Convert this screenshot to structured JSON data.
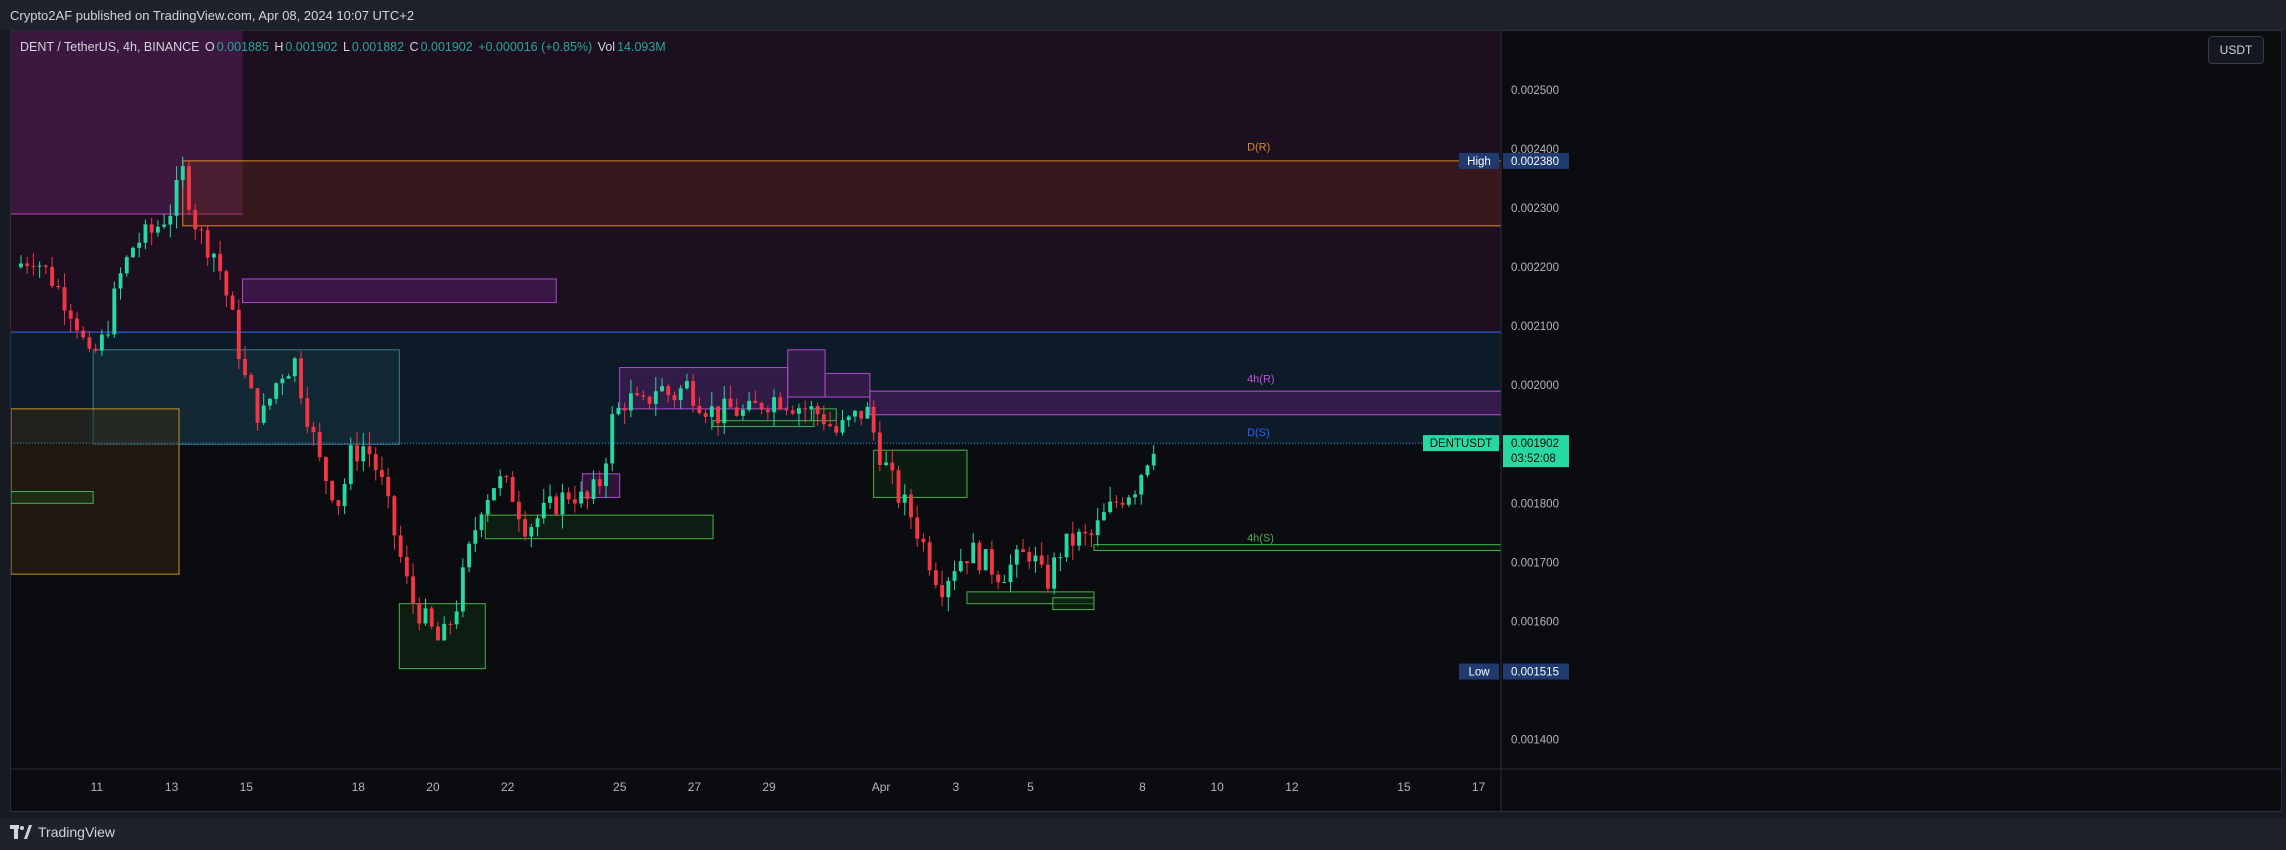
{
  "header": {
    "published": "Crypto2AF published on TradingView.com, Apr 08, 2024 10:07 UTC+2"
  },
  "footer": {
    "brand": "TradingView"
  },
  "legend": {
    "symbol": "DENT / TetherUS, 4h, BINANCE",
    "o_label": "O",
    "o_value": "0.001885",
    "h_label": "H",
    "h_value": "0.001902",
    "l_label": "L",
    "l_value": "0.001882",
    "c_label": "C",
    "c_value": "0.001902",
    "change": "+0.000016 (+0.85%)",
    "vol_label": "Vol",
    "vol_value": "14.093M"
  },
  "currency_button": "USDT",
  "colors": {
    "up": "#26d9a0",
    "down": "#f23645",
    "axis_text": "#b2b5be",
    "label_high_bg": "#1e3a6e",
    "label_price_bg": "#26d9a0"
  },
  "chart_data": {
    "type": "candlestick",
    "title": "DENT / TetherUS, 4h, BINANCE",
    "ylim": [
      0.00135,
      0.0026
    ],
    "y_ticks": [
      "0.002500",
      "0.002400",
      "0.002300",
      "0.002200",
      "0.002100",
      "0.002000",
      "0.001800",
      "0.001700",
      "0.001600",
      "0.001400"
    ],
    "x_ticks": [
      {
        "day": 11,
        "label": "11"
      },
      {
        "day": 13,
        "label": "13"
      },
      {
        "day": 15,
        "label": "15"
      },
      {
        "day": 18,
        "label": "18"
      },
      {
        "day": 20,
        "label": "20"
      },
      {
        "day": 22,
        "label": "22"
      },
      {
        "day": 25,
        "label": "25"
      },
      {
        "day": 27,
        "label": "27"
      },
      {
        "day": 29,
        "label": "29"
      },
      {
        "day": 32,
        "label": "Apr"
      },
      {
        "day": 34,
        "label": "3"
      },
      {
        "day": 36,
        "label": "5"
      },
      {
        "day": 39,
        "label": "8"
      },
      {
        "day": 41,
        "label": "10"
      },
      {
        "day": 43,
        "label": "12"
      },
      {
        "day": 46,
        "label": "15"
      },
      {
        "day": 48,
        "label": "17"
      }
    ],
    "x_range_days": [
      8.7,
      48.6
    ],
    "last_day": 39.3,
    "anchors": [
      [
        8.8,
        0.0022
      ],
      [
        9.3,
        0.00222
      ],
      [
        9.8,
        0.00218
      ],
      [
        10.4,
        0.00212
      ],
      [
        10.8,
        0.00204
      ],
      [
        11.2,
        0.00208
      ],
      [
        11.6,
        0.00218
      ],
      [
        12.0,
        0.00224
      ],
      [
        12.5,
        0.00226
      ],
      [
        13.0,
        0.0023
      ],
      [
        13.3,
        0.00236
      ],
      [
        13.7,
        0.00226
      ],
      [
        14.2,
        0.00222
      ],
      [
        14.6,
        0.00212
      ],
      [
        15.0,
        0.002
      ],
      [
        15.4,
        0.00194
      ],
      [
        15.9,
        0.00202
      ],
      [
        16.3,
        0.00204
      ],
      [
        16.6,
        0.00196
      ],
      [
        17.0,
        0.00186
      ],
      [
        17.5,
        0.0018
      ],
      [
        17.8,
        0.00188
      ],
      [
        18.2,
        0.0019
      ],
      [
        18.6,
        0.00184
      ],
      [
        19.0,
        0.00174
      ],
      [
        19.4,
        0.00164
      ],
      [
        19.8,
        0.0016
      ],
      [
        20.2,
        0.00156
      ],
      [
        20.6,
        0.00162
      ],
      [
        20.9,
        0.0017
      ],
      [
        21.3,
        0.0018
      ],
      [
        21.7,
        0.00184
      ],
      [
        22.1,
        0.00182
      ],
      [
        22.5,
        0.00176
      ],
      [
        22.9,
        0.00178
      ],
      [
        23.3,
        0.0018
      ],
      [
        23.7,
        0.00182
      ],
      [
        24.1,
        0.0018
      ],
      [
        24.5,
        0.00184
      ],
      [
        24.8,
        0.00194
      ],
      [
        25.2,
        0.00198
      ],
      [
        25.6,
        0.00196
      ],
      [
        26.0,
        0.002
      ],
      [
        26.4,
        0.00198
      ],
      [
        26.8,
        0.002
      ],
      [
        27.2,
        0.00197
      ],
      [
        27.6,
        0.00195
      ],
      [
        28.0,
        0.00196
      ],
      [
        28.4,
        0.00195
      ],
      [
        28.8,
        0.00197
      ],
      [
        29.2,
        0.00198
      ],
      [
        29.6,
        0.00197
      ],
      [
        30.0,
        0.00196
      ],
      [
        30.4,
        0.00195
      ],
      [
        30.8,
        0.00192
      ],
      [
        31.2,
        0.00194
      ],
      [
        31.6,
        0.00196
      ],
      [
        32.0,
        0.00188
      ],
      [
        32.4,
        0.00182
      ],
      [
        32.8,
        0.00178
      ],
      [
        33.2,
        0.00172
      ],
      [
        33.6,
        0.00166
      ],
      [
        34.0,
        0.0017
      ],
      [
        34.4,
        0.00172
      ],
      [
        34.8,
        0.0017
      ],
      [
        35.2,
        0.00168
      ],
      [
        35.6,
        0.0017
      ],
      [
        36.0,
        0.00172
      ],
      [
        36.4,
        0.00166
      ],
      [
        36.8,
        0.00172
      ],
      [
        37.2,
        0.00174
      ],
      [
        37.6,
        0.00174
      ],
      [
        38.0,
        0.00178
      ],
      [
        38.4,
        0.00181
      ],
      [
        38.8,
        0.00183
      ],
      [
        39.0,
        0.00186
      ],
      [
        39.3,
        0.001902
      ]
    ],
    "zones": [
      {
        "x1": 8.7,
        "x2": 48.6,
        "y1": 0.00209,
        "y2": 0.0026,
        "fill": "#2a1330",
        "opacity": 0.55,
        "stroke": "#a0306a",
        "bottom_only": true
      },
      {
        "x1": 8.7,
        "x2": 14.9,
        "y1": 0.00229,
        "y2": 0.0026,
        "fill": "#7a2a7a",
        "opacity": 0.35,
        "stroke": "#c040c0",
        "bottom_only": true
      },
      {
        "x1": 13.3,
        "x2": 48.6,
        "y1": 0.00227,
        "y2": 0.00238,
        "fill": "#6b2a1a",
        "opacity": 0.35,
        "stroke": "#e08a2a"
      },
      {
        "x1": 14.9,
        "x2": 23.3,
        "y1": 0.00214,
        "y2": 0.00218,
        "fill": "#5a1e6a",
        "opacity": 0.5,
        "stroke": "#b04ad0"
      },
      {
        "x1": 8.7,
        "x2": 48.6,
        "y1": 0.0019,
        "y2": 0.00209,
        "fill": "#0e2233",
        "opacity": 0.7,
        "stroke": "#2962ff",
        "top_only": true
      },
      {
        "x1": 10.9,
        "x2": 19.1,
        "y1": 0.0019,
        "y2": 0.00206,
        "fill": "#1a3a44",
        "opacity": 0.45,
        "stroke": "#3a7a8a"
      },
      {
        "x1": 8.7,
        "x2": 13.2,
        "y1": 0.00168,
        "y2": 0.00196,
        "fill": "#3a2a10",
        "opacity": 0.45,
        "stroke": "#c8902a"
      },
      {
        "x1": 8.7,
        "x2": 10.9,
        "y1": 0.0018,
        "y2": 0.00182,
        "fill": "#1a4a20",
        "opacity": 0.4,
        "stroke": "#4caf50"
      },
      {
        "x1": 19.1,
        "x2": 21.4,
        "y1": 0.00152,
        "y2": 0.00163,
        "fill": "#0f2a14",
        "opacity": 0.6,
        "stroke": "#4caf50"
      },
      {
        "x1": 21.4,
        "x2": 27.5,
        "y1": 0.00174,
        "y2": 0.00178,
        "fill": "#0f2a14",
        "opacity": 0.6,
        "stroke": "#4caf50"
      },
      {
        "x1": 24.0,
        "x2": 25.0,
        "y1": 0.00181,
        "y2": 0.00185,
        "fill": "#5a1e6a",
        "opacity": 0.45,
        "stroke": "#b04ad0"
      },
      {
        "x1": 25.0,
        "x2": 29.5,
        "y1": 0.00196,
        "y2": 0.00203,
        "fill": "#5a1e6a",
        "opacity": 0.45,
        "stroke": "#b04ad0"
      },
      {
        "x1": 29.5,
        "x2": 30.5,
        "y1": 0.00198,
        "y2": 0.00206,
        "fill": "#5a1e6a",
        "opacity": 0.45,
        "stroke": "#b04ad0"
      },
      {
        "x1": 30.5,
        "x2": 31.7,
        "y1": 0.00198,
        "y2": 0.00202,
        "fill": "#5a1e6a",
        "opacity": 0.45,
        "stroke": "#b04ad0"
      },
      {
        "x1": 31.7,
        "x2": 48.6,
        "y1": 0.00195,
        "y2": 0.00199,
        "fill": "#5a1e6a",
        "opacity": 0.5,
        "stroke": "#c050d8"
      },
      {
        "x1": 27.5,
        "x2": 30.2,
        "y1": 0.00193,
        "y2": 0.00194,
        "fill": "#0f2a14",
        "opacity": 0.5,
        "stroke": "#4caf50"
      },
      {
        "x1": 30.2,
        "x2": 30.8,
        "y1": 0.00194,
        "y2": 0.00196,
        "fill": "#0f2a14",
        "opacity": 0.5,
        "stroke": "#4caf50"
      },
      {
        "x1": 31.8,
        "x2": 34.3,
        "y1": 0.00181,
        "y2": 0.00189,
        "fill": "#0f2a14",
        "opacity": 0.55,
        "stroke": "#4caf50"
      },
      {
        "x1": 34.3,
        "x2": 37.7,
        "y1": 0.00163,
        "y2": 0.00165,
        "fill": "#0f2a14",
        "opacity": 0.55,
        "stroke": "#4caf50"
      },
      {
        "x1": 36.6,
        "x2": 37.7,
        "y1": 0.00162,
        "y2": 0.00164,
        "fill": "#0f2a14",
        "opacity": 0.55,
        "stroke": "#4caf50"
      },
      {
        "x1": 37.7,
        "x2": 48.6,
        "y1": 0.00172,
        "y2": 0.00173,
        "fill": "#0f2a14",
        "opacity": 0.55,
        "stroke": "#4caf50"
      }
    ],
    "annotations": [
      {
        "text": "D(R)",
        "x": 41.8,
        "y": 0.002398,
        "color": "#e08a2a"
      },
      {
        "text": "4h(R)",
        "x": 41.8,
        "y": 0.002005,
        "color": "#c050d8"
      },
      {
        "text": "D(S)",
        "x": 41.8,
        "y": 0.001914,
        "color": "#2962ff"
      },
      {
        "text": "4h(S)",
        "x": 41.8,
        "y": 0.001735,
        "color": "#4caf50"
      }
    ],
    "price_labels": [
      {
        "tag": "High",
        "value": "0.002380",
        "y": 0.00238
      },
      {
        "tag": "Low",
        "value": "0.001515",
        "y": 0.001515
      }
    ],
    "current": {
      "tag": "DENTUSDT",
      "value": "0.001902",
      "countdown": "03:52:08",
      "y": 0.001902
    }
  }
}
